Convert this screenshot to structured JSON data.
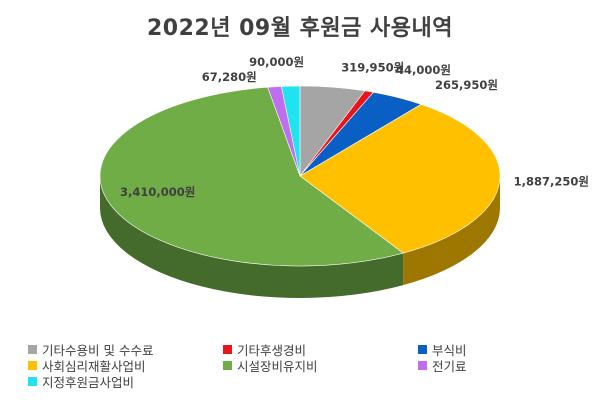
{
  "chart_data": {
    "type": "pie",
    "title": "2022년 09월 후원금 사용내역",
    "legend_position": "bottom",
    "slices": [
      {
        "name": "기타수용비 및 수수료",
        "value": 319950,
        "label": "319,950원",
        "color": "#a5a5a5"
      },
      {
        "name": "기타후생경비",
        "value": 44000,
        "label": "44,000원",
        "color": "#e8161b"
      },
      {
        "name": "부식비",
        "value": 265950,
        "label": "265,950원",
        "color": "#0a5fc4"
      },
      {
        "name": "사회심리재활사업비",
        "value": 1887250,
        "label": "1,887,250원",
        "color": "#ffc000"
      },
      {
        "name": "시설장비유지비",
        "value": 3410000,
        "label": "3,410,000원",
        "color": "#70ad47"
      },
      {
        "name": "전기료",
        "value": 67280,
        "label": "67,280원",
        "color": "#c06ef0"
      },
      {
        "name": "지정후원금사업비",
        "value": 90000,
        "label": "90,000원",
        "color": "#1fe3ee"
      }
    ]
  }
}
